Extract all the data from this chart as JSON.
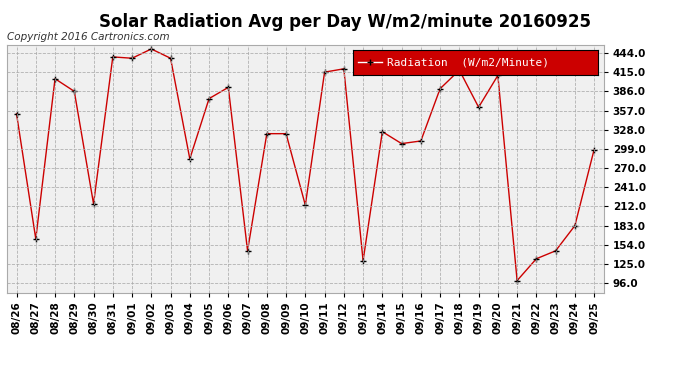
{
  "title": "Solar Radiation Avg per Day W/m2/minute 20160925",
  "copyright": "Copyright 2016 Cartronics.com",
  "legend_label": "Radiation  (W/m2/Minute)",
  "dates": [
    "08/26",
    "08/27",
    "08/28",
    "08/29",
    "08/30",
    "08/31",
    "09/01",
    "09/02",
    "09/03",
    "09/04",
    "09/05",
    "09/06",
    "09/07",
    "09/08",
    "09/09",
    "09/10",
    "09/11",
    "09/12",
    "09/13",
    "09/14",
    "09/15",
    "09/16",
    "09/17",
    "09/18",
    "09/19",
    "09/20",
    "09/21",
    "09/22",
    "09/23",
    "09/24",
    "09/25"
  ],
  "values": [
    352,
    163,
    405,
    386,
    216,
    438,
    436,
    450,
    436,
    284,
    375,
    392,
    145,
    322,
    322,
    214,
    415,
    420,
    130,
    325,
    307,
    311,
    390,
    418,
    362,
    410,
    100,
    133,
    145,
    183,
    298
  ],
  "line_color": "#cc0000",
  "marker_color": "#000000",
  "bg_color": "#ffffff",
  "plot_bg_color": "#f0f0f0",
  "grid_color": "#aaaaaa",
  "legend_bg": "#cc0000",
  "legend_text_color": "#ffffff",
  "y_ticks": [
    96.0,
    125.0,
    154.0,
    183.0,
    212.0,
    241.0,
    270.0,
    299.0,
    328.0,
    357.0,
    386.0,
    415.0,
    444.0
  ],
  "ylim": [
    82,
    456
  ],
  "title_fontsize": 12,
  "copyright_fontsize": 7.5,
  "tick_fontsize": 7.5,
  "legend_fontsize": 8
}
